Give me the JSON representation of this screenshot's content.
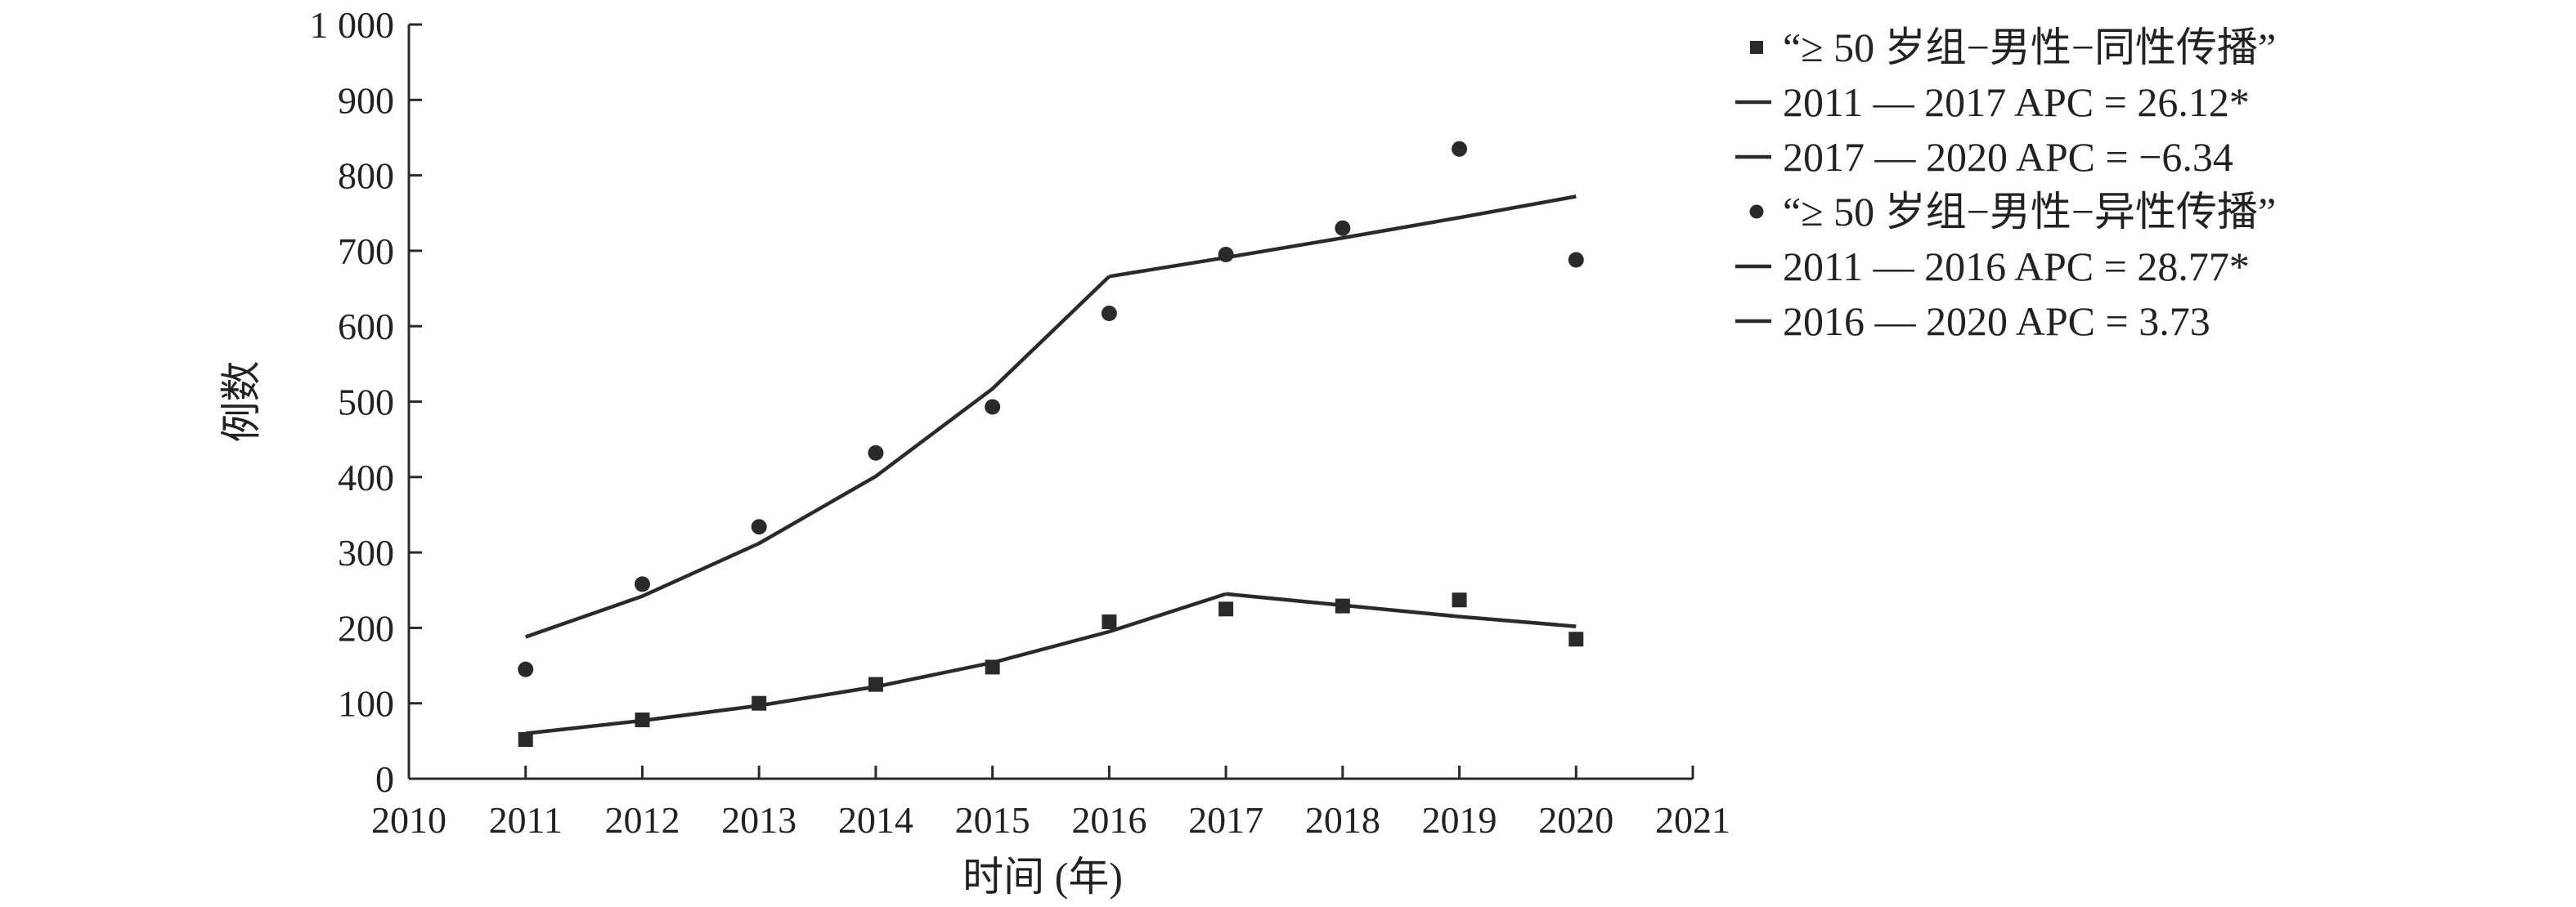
{
  "chart_data": {
    "type": "scatter",
    "title": "",
    "xlabel": "时间 (年)",
    "ylabel": "例数",
    "xlim": [
      2010,
      2021
    ],
    "ylim": [
      0,
      1000
    ],
    "x_ticks": [
      2010,
      2011,
      2012,
      2013,
      2014,
      2015,
      2016,
      2017,
      2018,
      2019,
      2020,
      2021
    ],
    "y_ticks": [
      0,
      100,
      200,
      300,
      400,
      500,
      600,
      700,
      800,
      900,
      1000
    ],
    "y_tick_labels": [
      "0",
      "100",
      "200",
      "300",
      "400",
      "500",
      "600",
      "700",
      "800",
      "900",
      "1 000"
    ],
    "grid": false,
    "legend_position": "right",
    "colors": {
      "ink": "#2a2a2a"
    },
    "series": [
      {
        "name": "“≥ 50 岁组−男性−同性传播”",
        "kind": "observed",
        "marker": "square",
        "x": [
          2011,
          2012,
          2013,
          2014,
          2015,
          2016,
          2017,
          2018,
          2019,
          2020
        ],
        "y": [
          52,
          78,
          100,
          125,
          148,
          208,
          225,
          229,
          237,
          185
        ]
      },
      {
        "name": "2011 — 2017 APC = 26.12*",
        "kind": "fit",
        "x": [
          2011,
          2012,
          2013,
          2014,
          2015,
          2016,
          2017
        ],
        "y": [
          60,
          77,
          97,
          122,
          154,
          195,
          245
        ]
      },
      {
        "name": "2017 — 2020 APC = −6.34",
        "kind": "fit",
        "x": [
          2017,
          2018,
          2019,
          2020
        ],
        "y": [
          245,
          230,
          215,
          202
        ]
      },
      {
        "name": "“≥ 50 岁组−男性−异性传播”",
        "kind": "observed",
        "marker": "circle",
        "x": [
          2011,
          2012,
          2013,
          2014,
          2015,
          2016,
          2017,
          2018,
          2019,
          2020
        ],
        "y": [
          145,
          258,
          334,
          432,
          493,
          617,
          695,
          730,
          835,
          688
        ]
      },
      {
        "name": "2011 — 2016 APC = 28.77*",
        "kind": "fit",
        "x": [
          2011,
          2012,
          2013,
          2014,
          2015,
          2016
        ],
        "y": [
          188,
          242,
          312,
          401,
          517,
          666
        ]
      },
      {
        "name": "2016 — 2020 APC = 3.73",
        "kind": "fit",
        "x": [
          2016,
          2017,
          2018,
          2019,
          2020
        ],
        "y": [
          666,
          691,
          717,
          744,
          772
        ]
      }
    ]
  }
}
